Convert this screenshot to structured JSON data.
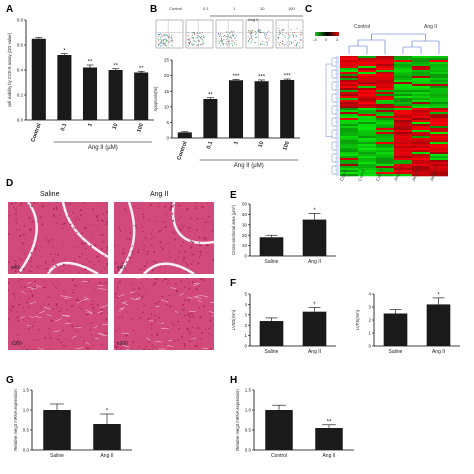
{
  "panels": {
    "A": "A",
    "B": "B",
    "C": "C",
    "D": "D",
    "E": "E",
    "F": "F",
    "G": "G",
    "H": "H"
  },
  "colors": {
    "bar": "#1a1a1a",
    "tissue": "#d24a7a",
    "tissue_dark": "#a8244f",
    "heat_red": "#e01010",
    "heat_green": "#2ec02e"
  },
  "flow": {
    "labels": [
      "Control",
      "0.1",
      "1",
      "10",
      "100"
    ],
    "group": "Ang II"
  },
  "heatmap": {
    "groups": [
      "Control",
      "Ang II"
    ],
    "columns": [
      "Con-1",
      "Con-2",
      "Con-3",
      "Ang II-1",
      "Ang II-2",
      "Ang II-3"
    ],
    "scale_ticks": [
      "-3",
      "0",
      "3"
    ]
  },
  "histology": {
    "saline": "Saline",
    "angii": "Ang II",
    "marks": [
      "x40",
      "x40",
      "x100",
      "x100"
    ]
  },
  "chart_data": [
    {
      "id": "A",
      "type": "bar",
      "categories": [
        "Control",
        "0.1",
        "1",
        "10",
        "100"
      ],
      "values": [
        0.65,
        0.52,
        0.42,
        0.4,
        0.38
      ],
      "errors": [
        0.01,
        0.01,
        0.02,
        0.01,
        0.01
      ],
      "sig": [
        "",
        "*",
        "**",
        "**",
        "**"
      ],
      "ylabel": "cell viability by CCK-8 assay (OD value)",
      "yticks": [
        0.0,
        0.2,
        0.4,
        0.6,
        0.8
      ],
      "ylim": [
        0,
        0.8
      ],
      "group_label": "Ang II (μM)",
      "group_start": 1
    },
    {
      "id": "B",
      "type": "bar",
      "categories": [
        "Control",
        "0.1",
        "1",
        "10",
        "100"
      ],
      "values": [
        1.8,
        12.5,
        18.5,
        18.2,
        18.6
      ],
      "errors": [
        0.2,
        0.4,
        0.3,
        0.4,
        0.3
      ],
      "sig": [
        "",
        "**",
        "***",
        "***",
        "***"
      ],
      "ylabel": "Apoptosis(%)",
      "yticks": [
        0,
        5,
        10,
        15,
        20,
        25
      ],
      "ylim": [
        0,
        25
      ],
      "group_label": "Ang II (μM)",
      "group_start": 1
    },
    {
      "id": "E",
      "type": "bar",
      "categories": [
        "Saline",
        "Ang II"
      ],
      "values": [
        18,
        35
      ],
      "errors": [
        2,
        6
      ],
      "sig": [
        "",
        "*"
      ],
      "ylabel": "Cross-sectional area (μm²)",
      "yticks": [
        0,
        10,
        20,
        30,
        40,
        50
      ],
      "ylim": [
        0,
        50
      ]
    },
    {
      "id": "F1",
      "type": "bar",
      "categories": [
        "Saline",
        "Ang II"
      ],
      "values": [
        2.4,
        3.3
      ],
      "errors": [
        0.3,
        0.4
      ],
      "sig": [
        "",
        "*"
      ],
      "ylabel": "LVSD(mm)",
      "yticks": [
        0,
        1,
        2,
        3,
        4,
        5
      ],
      "ylim": [
        0,
        5
      ]
    },
    {
      "id": "F2",
      "type": "bar",
      "categories": [
        "Saline",
        "Ang II"
      ],
      "values": [
        2.5,
        3.2
      ],
      "errors": [
        0.3,
        0.5
      ],
      "sig": [
        "",
        "*"
      ],
      "ylabel": "LVFS(mm)",
      "yticks": [
        0,
        1,
        2,
        3,
        4
      ],
      "ylim": [
        0,
        4
      ]
    },
    {
      "id": "G",
      "type": "bar",
      "categories": [
        "Saline",
        "Ang II"
      ],
      "values": [
        1.0,
        0.65
      ],
      "errors": [
        0.15,
        0.25
      ],
      "sig": [
        "",
        "*"
      ],
      "ylabel": "Relative meg3 mRNA expression",
      "yticks": [
        0.0,
        0.5,
        1.0,
        1.5
      ],
      "ylim": [
        0,
        1.5
      ]
    },
    {
      "id": "H",
      "type": "bar",
      "categories": [
        "Control",
        "Ang II"
      ],
      "values": [
        1.0,
        0.55
      ],
      "errors": [
        0.12,
        0.08
      ],
      "sig": [
        "",
        "**"
      ],
      "ylabel": "Relative meg3 mRNA expression",
      "yticks": [
        0.0,
        0.5,
        1.0,
        1.5
      ],
      "ylim": [
        0,
        1.5
      ]
    }
  ]
}
